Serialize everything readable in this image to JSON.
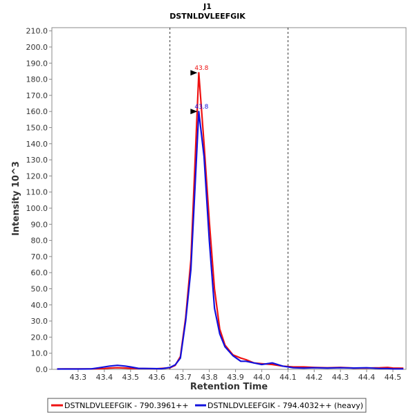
{
  "chart_data": {
    "type": "line",
    "title": "J1",
    "subtitle": "DSTNLDVLEEFGIK",
    "xlabel": "Retention Time",
    "ylabel": "Intensity 10^3",
    "xlim": [
      43.2,
      44.55
    ],
    "ylim": [
      0,
      212
    ],
    "x_ticks": [
      "43.3",
      "43.4",
      "43.5",
      "43.6",
      "43.7",
      "43.8",
      "43.9",
      "44.0",
      "44.1",
      "44.2",
      "44.3",
      "44.4",
      "44.5"
    ],
    "y_ticks": [
      "0.0",
      "10.0",
      "20.0",
      "30.0",
      "40.0",
      "50.0",
      "60.0",
      "70.0",
      "80.0",
      "90.0",
      "100.0",
      "110.0",
      "120.0",
      "130.0",
      "140.0",
      "150.0",
      "160.0",
      "170.0",
      "180.0",
      "190.0",
      "200.0",
      "210.0"
    ],
    "boundaries": [
      43.65,
      44.1
    ],
    "series": [
      {
        "name": "DSTNLDVLEEFGIK - 790.3961++",
        "color": "#ee1111",
        "peak_label": "43.8",
        "peak_x": 43.76,
        "peak_y": 184,
        "x": [
          43.22,
          43.25,
          43.3,
          43.35,
          43.4,
          43.42,
          43.45,
          43.48,
          43.5,
          43.55,
          43.6,
          43.65,
          43.67,
          43.69,
          43.71,
          43.73,
          43.76,
          43.78,
          43.8,
          43.82,
          43.84,
          43.86,
          43.89,
          43.92,
          43.94,
          43.97,
          44.0,
          44.04,
          44.08,
          44.12,
          44.16,
          44.2,
          44.25,
          44.3,
          44.35,
          44.4,
          44.45,
          44.48,
          44.5,
          44.54
        ],
        "y": [
          0.2,
          0.3,
          0.3,
          0.3,
          0.5,
          0.8,
          1.0,
          0.8,
          0.6,
          0.5,
          0.4,
          1.0,
          2.5,
          8,
          32,
          68,
          184,
          140,
          92,
          50,
          25,
          15,
          9,
          7,
          6,
          4,
          3.5,
          3,
          2,
          1.5,
          1.5,
          1.2,
          1,
          1.2,
          0.8,
          0.8,
          1,
          1.2,
          0.8,
          0.7
        ]
      },
      {
        "name": "DSTNLDVLEEFGIK - 794.4032++ (heavy)",
        "color": "#1111dd",
        "peak_label": "43.8",
        "peak_x": 43.76,
        "peak_y": 160,
        "x": [
          43.22,
          43.25,
          43.3,
          43.35,
          43.38,
          43.42,
          43.45,
          43.48,
          43.5,
          43.53,
          43.57,
          43.62,
          43.65,
          43.67,
          43.69,
          43.71,
          43.73,
          43.76,
          43.78,
          43.8,
          43.82,
          43.84,
          43.86,
          43.89,
          43.92,
          43.94,
          43.97,
          44.0,
          44.04,
          44.08,
          44.12,
          44.16,
          44.2,
          44.25,
          44.3,
          44.35,
          44.4,
          44.45,
          44.48,
          44.5,
          44.54
        ],
        "y": [
          0.2,
          0.2,
          0.2,
          0.3,
          1.0,
          2.0,
          2.5,
          2.0,
          1.5,
          0.6,
          0.5,
          0.4,
          1.2,
          2.8,
          7,
          30,
          62,
          160,
          132,
          80,
          38,
          22,
          14,
          8.5,
          5,
          5,
          4,
          3,
          4,
          2,
          1,
          0.8,
          1,
          0.8,
          1,
          0.8,
          1,
          0.5,
          0.5,
          0.3,
          0.3
        ]
      }
    ]
  }
}
